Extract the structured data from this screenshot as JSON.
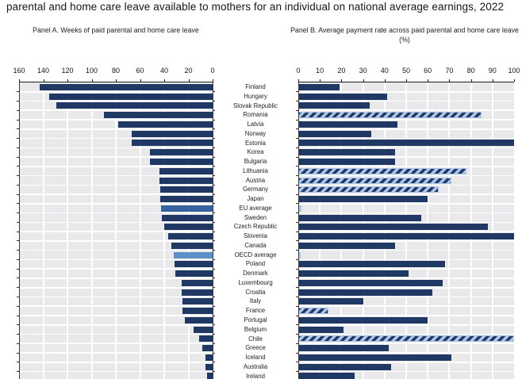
{
  "title": "parental and home care leave available to mothers for an individual on national average earnings, 2022",
  "panel_a": {
    "caption": "Panel A. Weeks of paid parental and home care leave"
  },
  "panel_b": {
    "caption": "Panel B. Average payment rate across paid parental and home care leave (%)"
  },
  "colors": {
    "bar_navy": "#1f3864",
    "eu_average_bar": "#35639e",
    "oecd_average_bar": "#5f8fc9",
    "hatch_background": "#aec6e8",
    "hatch_stripe": "#1f3864",
    "plot_background": "#e9e9eb",
    "gridline": "#ffffff",
    "axis": "#1a1a1a"
  },
  "chart_data": {
    "type": "bar",
    "orientation": "horizontal",
    "grid": true,
    "legend": false,
    "categories": [
      "Finland",
      "Hungary",
      "Slovak Republic",
      "Romania",
      "Latvia",
      "Norway",
      "Estonia",
      "Korea",
      "Bulgaria",
      "Lithuania",
      "Austria",
      "Germany",
      "Japan",
      "EU average",
      "Sweden",
      "Czech Republic",
      "Slovenia",
      "Canada",
      "OECD average",
      "Poland",
      "Denmark",
      "Luxembourg",
      "Croatia",
      "Italy",
      "France",
      "Portugal",
      "Belgium",
      "Chile",
      "Greece",
      "Iceland",
      "Australia",
      "Ireland"
    ],
    "highlight_average_rows": [
      "EU average",
      "OECD average"
    ],
    "series": [
      {
        "name": "Weeks of paid parental and home care leave",
        "panel": "A",
        "axis_range": [
          160,
          0
        ],
        "axis_ticks": [
          160,
          140,
          120,
          100,
          80,
          60,
          40,
          20,
          0
        ],
        "values": [
          143,
          135,
          129,
          90,
          78,
          67,
          67,
          52,
          51.5,
          44,
          44,
          43,
          43,
          42.5,
          42,
          40,
          37,
          34,
          32,
          31.5,
          31,
          25.5,
          25.5,
          25,
          25,
          23,
          16,
          11,
          8.5,
          6,
          6,
          4.5
        ]
      },
      {
        "name": "Average payment rate across paid parental and home care leave (%)",
        "panel": "B",
        "axis_range": [
          0,
          100
        ],
        "axis_ticks": [
          0,
          10,
          20,
          30,
          40,
          50,
          60,
          70,
          80,
          90,
          100
        ],
        "values": [
          19,
          41,
          33,
          85,
          46,
          34,
          100,
          45,
          45,
          78,
          71,
          65,
          60,
          1.5,
          57,
          88,
          100,
          45,
          1,
          68,
          51,
          67,
          62,
          30,
          14,
          60,
          21,
          100,
          42,
          71,
          43,
          26
        ],
        "hatched_categories": [
          "Romania",
          "Lithuania",
          "Austria",
          "Germany",
          "France",
          "Chile"
        ]
      }
    ]
  }
}
